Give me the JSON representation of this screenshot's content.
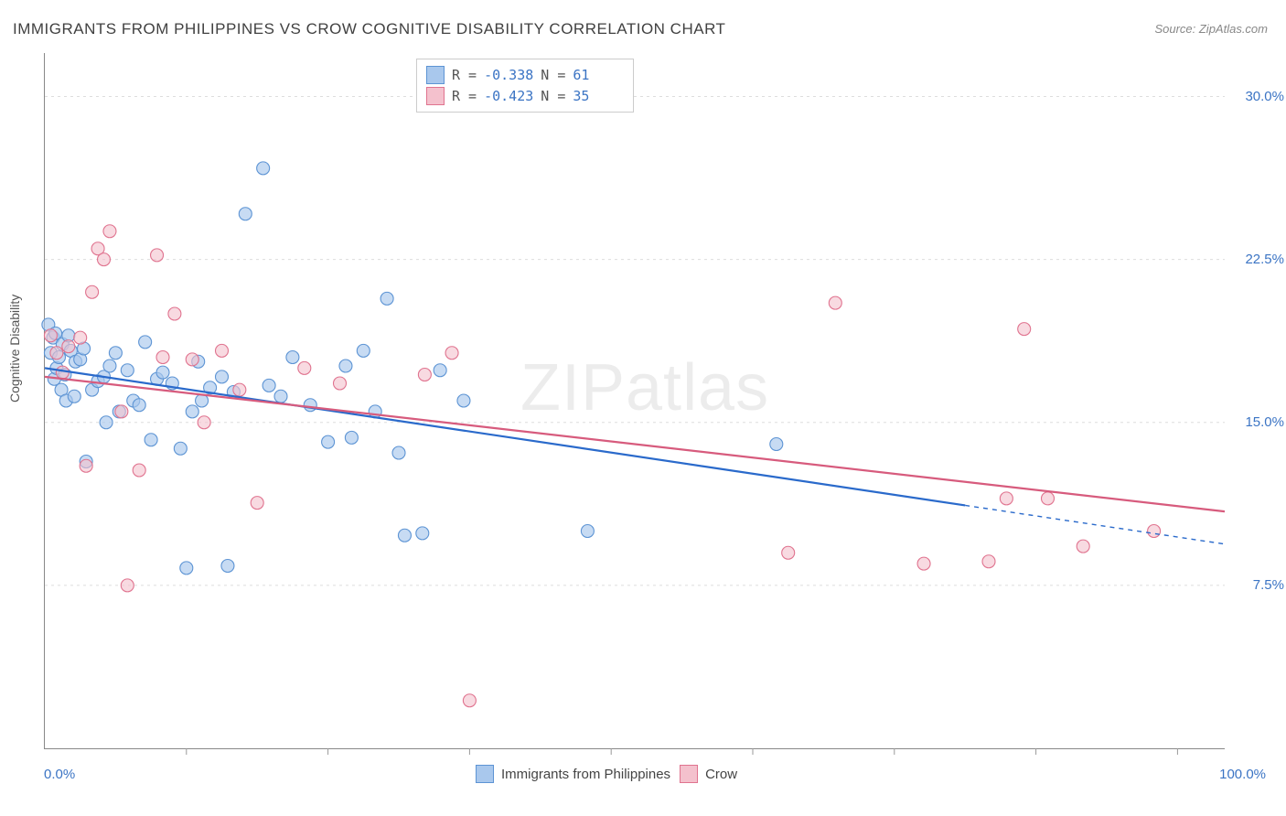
{
  "title": "IMMIGRANTS FROM PHILIPPINES VS CROW COGNITIVE DISABILITY CORRELATION CHART",
  "source_label": "Source: ",
  "source_value": "ZipAtlas.com",
  "y_axis_title": "Cognitive Disability",
  "watermark_part1": "ZIP",
  "watermark_part2": "atlas",
  "chart": {
    "type": "scatter",
    "xlim": [
      0,
      100
    ],
    "ylim": [
      0,
      32
    ],
    "x_axis_label_min": "0.0%",
    "x_axis_label_max": "100.0%",
    "y_ticks": [
      7.5,
      15.0,
      22.5,
      30.0
    ],
    "y_tick_labels": [
      "7.5%",
      "15.0%",
      "22.5%",
      "30.0%"
    ],
    "x_tick_positions": [
      12,
      24,
      36,
      48,
      60,
      72,
      84,
      96
    ],
    "background_color": "#ffffff",
    "grid_color": "#dddddd",
    "grid_dash": true,
    "series": [
      {
        "name": "Immigrants from Philippines",
        "fill_color": "#a9c8ed",
        "stroke_color": "#5d94d4",
        "fill_opacity": 0.65,
        "point_radius": 7,
        "regression": {
          "r": "-0.338",
          "n": "61",
          "line_color": "#2a6acb",
          "line_width": 2.2,
          "y_at_x0": 17.5,
          "y_at_x100": 9.4,
          "solid_until_x": 78,
          "dash_after": true
        },
        "points": [
          [
            0.3,
            19.5
          ],
          [
            0.5,
            18.2
          ],
          [
            0.7,
            18.9
          ],
          [
            0.8,
            17.0
          ],
          [
            0.9,
            19.1
          ],
          [
            1.0,
            17.5
          ],
          [
            1.2,
            18.0
          ],
          [
            1.4,
            16.5
          ],
          [
            1.5,
            18.6
          ],
          [
            1.7,
            17.2
          ],
          [
            1.8,
            16.0
          ],
          [
            2.0,
            19.0
          ],
          [
            2.2,
            18.3
          ],
          [
            2.5,
            16.2
          ],
          [
            2.6,
            17.8
          ],
          [
            3.0,
            17.9
          ],
          [
            3.3,
            18.4
          ],
          [
            3.5,
            13.2
          ],
          [
            4.0,
            16.5
          ],
          [
            4.5,
            16.9
          ],
          [
            5.0,
            17.1
          ],
          [
            5.2,
            15.0
          ],
          [
            5.5,
            17.6
          ],
          [
            6.0,
            18.2
          ],
          [
            6.3,
            15.5
          ],
          [
            7.0,
            17.4
          ],
          [
            7.5,
            16.0
          ],
          [
            8.0,
            15.8
          ],
          [
            8.5,
            18.7
          ],
          [
            9.0,
            14.2
          ],
          [
            9.5,
            17.0
          ],
          [
            10.0,
            17.3
          ],
          [
            10.8,
            16.8
          ],
          [
            11.5,
            13.8
          ],
          [
            12.0,
            8.3
          ],
          [
            12.5,
            15.5
          ],
          [
            13.0,
            17.8
          ],
          [
            13.3,
            16.0
          ],
          [
            14.0,
            16.6
          ],
          [
            15.0,
            17.1
          ],
          [
            15.5,
            8.4
          ],
          [
            16.0,
            16.4
          ],
          [
            17.0,
            24.6
          ],
          [
            18.5,
            26.7
          ],
          [
            19.0,
            16.7
          ],
          [
            20.0,
            16.2
          ],
          [
            21.0,
            18.0
          ],
          [
            22.5,
            15.8
          ],
          [
            24.0,
            14.1
          ],
          [
            25.5,
            17.6
          ],
          [
            26.0,
            14.3
          ],
          [
            27.0,
            18.3
          ],
          [
            28.0,
            15.5
          ],
          [
            29.0,
            20.7
          ],
          [
            30.0,
            13.6
          ],
          [
            30.5,
            9.8
          ],
          [
            32.0,
            9.9
          ],
          [
            33.5,
            17.4
          ],
          [
            35.5,
            16.0
          ],
          [
            46.0,
            10.0
          ],
          [
            62.0,
            14.0
          ]
        ]
      },
      {
        "name": "Crow",
        "fill_color": "#f4c1cd",
        "stroke_color": "#e0738f",
        "fill_opacity": 0.6,
        "point_radius": 7,
        "regression": {
          "r": "-0.423",
          "n": "35",
          "line_color": "#d75b7d",
          "line_width": 2.2,
          "y_at_x0": 17.1,
          "y_at_x100": 10.9,
          "solid_until_x": 100,
          "dash_after": false
        },
        "points": [
          [
            0.5,
            19.0
          ],
          [
            1.0,
            18.2
          ],
          [
            1.5,
            17.3
          ],
          [
            2.0,
            18.5
          ],
          [
            3.0,
            18.9
          ],
          [
            3.5,
            13.0
          ],
          [
            4.0,
            21.0
          ],
          [
            4.5,
            23.0
          ],
          [
            5.0,
            22.5
          ],
          [
            5.5,
            23.8
          ],
          [
            6.5,
            15.5
          ],
          [
            7.0,
            7.5
          ],
          [
            8.0,
            12.8
          ],
          [
            9.5,
            22.7
          ],
          [
            10.0,
            18.0
          ],
          [
            11.0,
            20.0
          ],
          [
            12.5,
            17.9
          ],
          [
            13.5,
            15.0
          ],
          [
            15.0,
            18.3
          ],
          [
            16.5,
            16.5
          ],
          [
            18.0,
            11.3
          ],
          [
            22.0,
            17.5
          ],
          [
            25.0,
            16.8
          ],
          [
            32.2,
            17.2
          ],
          [
            34.5,
            18.2
          ],
          [
            36.0,
            2.2
          ],
          [
            63.0,
            9.0
          ],
          [
            67.0,
            20.5
          ],
          [
            74.5,
            8.5
          ],
          [
            80.0,
            8.6
          ],
          [
            81.5,
            11.5
          ],
          [
            83.0,
            19.3
          ],
          [
            85.0,
            11.5
          ],
          [
            88.0,
            9.3
          ],
          [
            94.0,
            10.0
          ]
        ]
      }
    ],
    "legend_top": {
      "r_label": "R =",
      "n_label": "N ="
    },
    "legend_bottom_labels": [
      "Immigrants from Philippines",
      "Crow"
    ]
  }
}
